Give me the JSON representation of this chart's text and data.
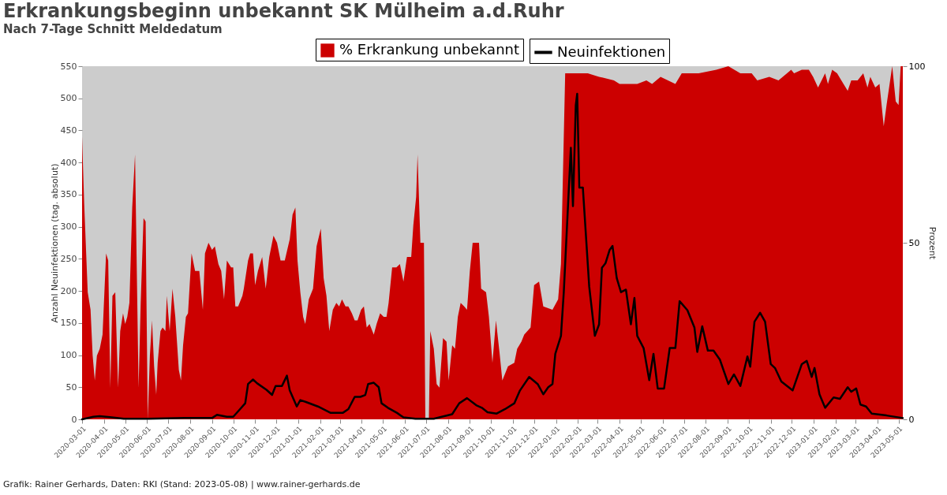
{
  "chart_data": {
    "type": "line",
    "title": "Erkrankungsbeginn unbekannt SK Mülheim a.d.Ruhr",
    "subtitle": "Nach 7-Tage Schnitt Meldedatum",
    "ylabel": "Anzahl Neuinfektionen (tag. absolut)",
    "y2label": "Prozent",
    "annotations": [
      "Grafik: Rainer Gerhards, Daten: RKI (Stand: 2023-05-08) | www.rainer-gerhards.de"
    ],
    "legend": "top",
    "xlim": [
      "2020-03-01",
      "2023-05-07"
    ],
    "xticks": [
      "2020-03-01",
      "2020-04-01",
      "2020-05-01",
      "2020-06-01",
      "2020-07-01",
      "2020-08-01",
      "2020-09-01",
      "2020-10-01",
      "2020-11-01",
      "2020-12-01",
      "2021-01-01",
      "2021-02-01",
      "2021-03-01",
      "2021-04-01",
      "2021-05-01",
      "2021-06-01",
      "2021-07-01",
      "2021-08-01",
      "2021-09-01",
      "2021-10-01",
      "2021-11-01",
      "2021-12-01",
      "2022-01-01",
      "2022-02-01",
      "2022-03-01",
      "2022-04-01",
      "2022-05-01",
      "2022-06-01",
      "2022-07-01",
      "2022-08-01",
      "2022-09-01",
      "2022-10-01",
      "2022-11-01",
      "2022-12-01",
      "2023-01-01",
      "2023-02-01",
      "2023-03-01",
      "2023-04-01",
      "2023-05-01"
    ],
    "ylim": [
      0,
      550
    ],
    "yticks": [
      0,
      50,
      100,
      150,
      200,
      250,
      300,
      350,
      400,
      450,
      500,
      550
    ],
    "y2lim": [
      0,
      100
    ],
    "y2ticks": [
      0,
      50,
      100
    ],
    "series": [
      {
        "name": "Neuinfektionen",
        "color": "#000000",
        "x": [
          "2020-03-01",
          "2020-03-17",
          "2020-03-26",
          "2020-04-12",
          "2020-04-29",
          "2020-06-03",
          "2020-07-24",
          "2020-09-01",
          "2020-09-08",
          "2020-09-22",
          "2020-10-01",
          "2020-10-10",
          "2020-10-18",
          "2020-10-22",
          "2020-10-29",
          "2020-11-04",
          "2020-11-17",
          "2020-11-25",
          "2020-11-30",
          "2020-12-09",
          "2020-12-16",
          "2020-12-20",
          "2020-12-26",
          "2020-12-30",
          "2021-01-04",
          "2021-01-12",
          "2021-01-29",
          "2021-02-16",
          "2021-03-05",
          "2021-03-13",
          "2021-03-22",
          "2021-03-30",
          "2021-04-06",
          "2021-04-10",
          "2021-04-18",
          "2021-04-25",
          "2021-04-29",
          "2021-05-08",
          "2021-05-21",
          "2021-05-30",
          "2021-06-16",
          "2021-07-12",
          "2021-08-07",
          "2021-08-17",
          "2021-08-28",
          "2021-09-10",
          "2021-09-18",
          "2021-09-26",
          "2021-10-09",
          "2021-10-21",
          "2021-11-03",
          "2021-11-11",
          "2021-11-24",
          "2021-12-06",
          "2021-12-14",
          "2021-12-21",
          "2021-12-27",
          "2021-12-31",
          "2022-01-08",
          "2022-01-12",
          "2022-01-22",
          "2022-01-25",
          "2022-01-29",
          "2022-01-31",
          "2022-02-03",
          "2022-02-08",
          "2022-02-17",
          "2022-02-25",
          "2022-03-03",
          "2022-03-07",
          "2022-03-12",
          "2022-03-18",
          "2022-03-22",
          "2022-03-28",
          "2022-04-03",
          "2022-04-10",
          "2022-04-17",
          "2022-04-22",
          "2022-04-26",
          "2022-05-05",
          "2022-05-13",
          "2022-05-19",
          "2022-05-25",
          "2022-06-03",
          "2022-06-11",
          "2022-06-19",
          "2022-06-25",
          "2022-07-06",
          "2022-07-16",
          "2022-07-20",
          "2022-07-27",
          "2022-08-04",
          "2022-08-12",
          "2022-08-21",
          "2022-09-02",
          "2022-09-10",
          "2022-09-19",
          "2022-09-29",
          "2022-10-03",
          "2022-10-09",
          "2022-10-17",
          "2022-10-24",
          "2022-11-01",
          "2022-11-07",
          "2022-11-16",
          "2022-12-02",
          "2022-12-15",
          "2022-12-22",
          "2022-12-29",
          "2023-01-02",
          "2023-01-09",
          "2023-01-17",
          "2023-01-29",
          "2023-02-07",
          "2023-02-18",
          "2023-02-23",
          "2023-03-02",
          "2023-03-08",
          "2023-03-16",
          "2023-03-24",
          "2023-04-14",
          "2023-05-07"
        ],
        "values": [
          0,
          4,
          5,
          3,
          1,
          1,
          2,
          2,
          7,
          4,
          4,
          15,
          25,
          55,
          62,
          56,
          46,
          38,
          52,
          52,
          68,
          45,
          30,
          20,
          30,
          27,
          20,
          10,
          10,
          16,
          35,
          35,
          38,
          55,
          57,
          50,
          25,
          18,
          10,
          3,
          1,
          1,
          8,
          25,
          33,
          22,
          18,
          11,
          9,
          16,
          25,
          45,
          66,
          55,
          39,
          50,
          55,
          102,
          130,
          198,
          423,
          332,
          489,
          507,
          361,
          361,
          207,
          130,
          148,
          236,
          243,
          264,
          270,
          220,
          198,
          202,
          148,
          189,
          130,
          111,
          61,
          102,
          48,
          48,
          111,
          111,
          184,
          170,
          143,
          105,
          145,
          107,
          107,
          93,
          55,
          70,
          52,
          98,
          82,
          152,
          166,
          152,
          86,
          80,
          59,
          45,
          86,
          91,
          66,
          80,
          39,
          18,
          34,
          32,
          50,
          43,
          48,
          23,
          20,
          9,
          6,
          2
        ]
      },
      {
        "name": "% Erkrankung unbekannt",
        "type": "area",
        "axis": "y2",
        "color": "#cc0000",
        "x": [
          "2020-03-01",
          "2020-03-04",
          "2020-03-09",
          "2020-03-13",
          "2020-03-16",
          "2020-03-19",
          "2020-03-22",
          "2020-03-26",
          "2020-03-30",
          "2020-04-04",
          "2020-04-07",
          "2020-04-10",
          "2020-04-13",
          "2020-04-17",
          "2020-04-21",
          "2020-04-24",
          "2020-04-28",
          "2020-05-01",
          "2020-05-04",
          "2020-05-07",
          "2020-05-11",
          "2020-05-15",
          "2020-05-20",
          "2020-05-23",
          "2020-05-27",
          "2020-05-30",
          "2020-06-02",
          "2020-06-05",
          "2020-06-08",
          "2020-06-11",
          "2020-06-14",
          "2020-06-16",
          "2020-06-20",
          "2020-06-23",
          "2020-06-27",
          "2020-06-29",
          "2020-07-03",
          "2020-07-07",
          "2020-07-11",
          "2020-07-16",
          "2020-07-19",
          "2020-07-22",
          "2020-07-26",
          "2020-07-29",
          "2020-08-03",
          "2020-08-08",
          "2020-08-14",
          "2020-08-19",
          "2020-08-22",
          "2020-08-27",
          "2020-09-01",
          "2020-09-05",
          "2020-09-10",
          "2020-09-14",
          "2020-09-18",
          "2020-09-22",
          "2020-09-28",
          "2020-10-01",
          "2020-10-04",
          "2020-10-08",
          "2020-10-14",
          "2020-10-16",
          "2020-10-22",
          "2020-10-25",
          "2020-10-29",
          "2020-11-01",
          "2020-11-05",
          "2020-11-11",
          "2020-11-16",
          "2020-11-21",
          "2020-11-27",
          "2020-12-02",
          "2020-12-07",
          "2020-12-13",
          "2020-12-20",
          "2020-12-24",
          "2020-12-28",
          "2020-12-31",
          "2021-01-04",
          "2021-01-08",
          "2021-01-11",
          "2021-01-16",
          "2021-01-22",
          "2021-01-27",
          "2021-02-02",
          "2021-02-06",
          "2021-02-10",
          "2021-02-14",
          "2021-02-19",
          "2021-02-24",
          "2021-02-28",
          "2021-03-04",
          "2021-03-09",
          "2021-03-13",
          "2021-03-18",
          "2021-03-22",
          "2021-03-26",
          "2021-03-31",
          "2021-04-04",
          "2021-04-08",
          "2021-04-12",
          "2021-04-18",
          "2021-04-22",
          "2021-04-27",
          "2021-05-02",
          "2021-05-06",
          "2021-05-09",
          "2021-05-14",
          "2021-05-20",
          "2021-05-25",
          "2021-05-30",
          "2021-06-04",
          "2021-06-10",
          "2021-06-13",
          "2021-06-17",
          "2021-06-19",
          "2021-06-23",
          "2021-06-28",
          "2021-06-30",
          "2021-07-05",
          "2021-07-07",
          "2021-07-12",
          "2021-07-16",
          "2021-07-20",
          "2021-07-25",
          "2021-07-30",
          "2021-08-02",
          "2021-08-07",
          "2021-08-11",
          "2021-08-15",
          "2021-08-19",
          "2021-08-24",
          "2021-08-28",
          "2021-09-01",
          "2021-09-05",
          "2021-09-11",
          "2021-09-14",
          "2021-09-17",
          "2021-09-24",
          "2021-09-28",
          "2021-10-03",
          "2021-10-08",
          "2021-10-13",
          "2021-10-17",
          "2021-10-25",
          "2021-11-03",
          "2021-11-07",
          "2021-11-13",
          "2021-11-17",
          "2021-11-26",
          "2021-12-01",
          "2021-12-08",
          "2021-12-14",
          "2021-12-27",
          "2022-01-04",
          "2022-01-08",
          "2022-01-11",
          "2022-01-14",
          "2022-01-25",
          "2022-02-15",
          "2022-03-03",
          "2022-03-24",
          "2022-04-01",
          "2022-04-26",
          "2022-05-09",
          "2022-05-17",
          "2022-05-29",
          "2022-06-19",
          "2022-06-28",
          "2022-07-22",
          "2022-08-16",
          "2022-09-02",
          "2022-09-19",
          "2022-10-05",
          "2022-10-13",
          "2022-10-30",
          "2022-11-12",
          "2022-11-24",
          "2022-11-30",
          "2022-12-04",
          "2022-12-15",
          "2022-12-25",
          "2022-12-31",
          "2023-01-07",
          "2023-01-17",
          "2023-01-21",
          "2023-01-27",
          "2023-02-03",
          "2023-02-09",
          "2023-02-18",
          "2023-02-23",
          "2023-03-04",
          "2023-03-12",
          "2023-03-18",
          "2023-03-22",
          "2023-03-29",
          "2023-04-04",
          "2023-04-10",
          "2023-04-14",
          "2023-04-22",
          "2023-04-27",
          "2023-05-01",
          "2023-05-04",
          "2023-05-07"
        ],
        "values": [
          80,
          61,
          36,
          31,
          18,
          11,
          18,
          20,
          24,
          47,
          45,
          9,
          35,
          36,
          9,
          25,
          30,
          27,
          29,
          33,
          60,
          75,
          9,
          33,
          57,
          56,
          0,
          18,
          28,
          15,
          7,
          16,
          25,
          26,
          25,
          35,
          25,
          37,
          29,
          14,
          11,
          21,
          29,
          30,
          47,
          42,
          42,
          31,
          47,
          50,
          48,
          49,
          44,
          42,
          34,
          45,
          43,
          43,
          32,
          32,
          35,
          37,
          45,
          47,
          47,
          38,
          42,
          46,
          37,
          46,
          52,
          50,
          45,
          45,
          51,
          58,
          60,
          45,
          36,
          29,
          27,
          34,
          37,
          49,
          54,
          40,
          35,
          25,
          31,
          33,
          32,
          34,
          32,
          32,
          30,
          28,
          28,
          31,
          32,
          26,
          27,
          24,
          27,
          30,
          29,
          29,
          33,
          43,
          43,
          44,
          39,
          46,
          46,
          55,
          63,
          75,
          50,
          50,
          0,
          0,
          25,
          20,
          10,
          9,
          23,
          22,
          11,
          21,
          20,
          29,
          33,
          32,
          31,
          42,
          50,
          50,
          50,
          37,
          36,
          29,
          16,
          28,
          19,
          11,
          15,
          16,
          20,
          22,
          24,
          26,
          38,
          39,
          32,
          31,
          34,
          44,
          71,
          98,
          98,
          98,
          97,
          96,
          95,
          95,
          96,
          95,
          97,
          95,
          98,
          98,
          99,
          100,
          98,
          98,
          96,
          97,
          96,
          98,
          99,
          98,
          99,
          99,
          97,
          94,
          98,
          95,
          99,
          98,
          96,
          93,
          96,
          96,
          98,
          94,
          97,
          94,
          95,
          83,
          89,
          100,
          90,
          89,
          100,
          100
        ]
      }
    ]
  }
}
